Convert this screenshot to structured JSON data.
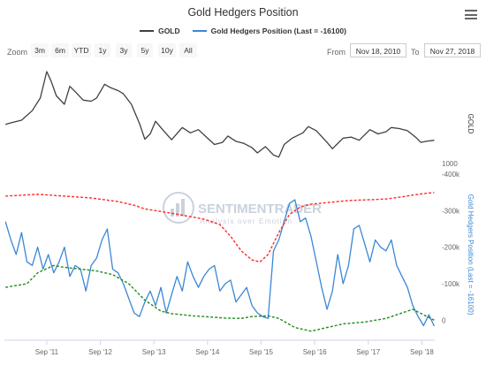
{
  "header": {
    "title": "Gold Hedgers Position",
    "menu_icon": "hamburger-menu-icon"
  },
  "legend": [
    {
      "label": "GOLD",
      "color": "#404040"
    },
    {
      "label": "Gold Hedgers Position (Last = -16100)",
      "color": "#3a87d6"
    }
  ],
  "toolbar": {
    "zoom_label": "Zoom",
    "zoom_buttons": [
      "3m",
      "6m",
      "YTD",
      "1y",
      "3y",
      "5y",
      "10y",
      "All"
    ],
    "from_label": "From",
    "from_value": "Nov 18, 2010",
    "to_label": "To",
    "to_value": "Nov 27, 2018"
  },
  "watermark": {
    "title": "SENTIMENTRADER",
    "subtitle": "Analysis over Emotion",
    "icon": "bar-chart-logo-icon"
  },
  "chart_data": [
    {
      "type": "line",
      "title": "",
      "ylabel": "GOLD",
      "x_range": [
        2010.88,
        2018.91
      ],
      "y_range": [
        1000,
        1920
      ],
      "y_ticks": [
        {
          "value": 1000,
          "label": "1000"
        }
      ],
      "grid": false,
      "series": [
        {
          "name": "GOLD",
          "color": "#404040",
          "x": [
            2010.9,
            2011.0,
            2011.2,
            2011.4,
            2011.55,
            2011.67,
            2011.75,
            2011.85,
            2012.0,
            2012.1,
            2012.2,
            2012.35,
            2012.5,
            2012.6,
            2012.75,
            2012.85,
            2013.0,
            2013.1,
            2013.25,
            2013.4,
            2013.5,
            2013.6,
            2013.7,
            2013.85,
            2014.0,
            2014.2,
            2014.35,
            2014.5,
            2014.65,
            2014.8,
            2014.95,
            2015.05,
            2015.2,
            2015.35,
            2015.5,
            2015.6,
            2015.75,
            2015.9,
            2016.0,
            2016.1,
            2016.25,
            2016.45,
            2016.55,
            2016.7,
            2016.9,
            2017.0,
            2017.2,
            2017.35,
            2017.5,
            2017.7,
            2017.85,
            2018.0,
            2018.1,
            2018.25,
            2018.4,
            2018.55,
            2018.65,
            2018.75,
            2018.9
          ],
          "y": [
            1370,
            1385,
            1410,
            1500,
            1620,
            1870,
            1780,
            1640,
            1560,
            1730,
            1680,
            1600,
            1590,
            1620,
            1750,
            1720,
            1690,
            1660,
            1560,
            1380,
            1230,
            1280,
            1400,
            1310,
            1225,
            1340,
            1290,
            1320,
            1250,
            1180,
            1200,
            1260,
            1210,
            1190,
            1150,
            1100,
            1160,
            1080,
            1060,
            1180,
            1240,
            1290,
            1350,
            1310,
            1200,
            1140,
            1240,
            1250,
            1220,
            1320,
            1280,
            1300,
            1340,
            1330,
            1310,
            1250,
            1200,
            1210,
            1220
          ]
        }
      ]
    },
    {
      "type": "line",
      "title": "",
      "ylabel": "Gold Hedgers Position (Last = -16100)",
      "x_range": [
        2010.88,
        2018.91
      ],
      "y_range": [
        -50000,
        410000
      ],
      "y_ticks": [
        {
          "value": 400000,
          "label": "-400k"
        },
        {
          "value": 300000,
          "label": "-300k"
        },
        {
          "value": 200000,
          "label": "-200k"
        },
        {
          "value": 100000,
          "label": "-100k"
        },
        {
          "value": 0,
          "label": "0"
        }
      ],
      "x_ticks": [
        {
          "value": 2011.67,
          "label": "Sep '11"
        },
        {
          "value": 2012.67,
          "label": "Sep '12"
        },
        {
          "value": 2013.67,
          "label": "Sep '13"
        },
        {
          "value": 2014.67,
          "label": "Sep '14"
        },
        {
          "value": 2015.67,
          "label": "Sep '15"
        },
        {
          "value": 2016.67,
          "label": "Sep '16"
        },
        {
          "value": 2017.67,
          "label": "Sep '17"
        },
        {
          "value": 2018.67,
          "label": "Sep '18"
        }
      ],
      "grid": false,
      "series": [
        {
          "name": "Gold Hedgers Position (Last = -16100)",
          "color": "#3a87d6",
          "x": [
            2010.9,
            2011.0,
            2011.1,
            2011.2,
            2011.3,
            2011.4,
            2011.5,
            2011.6,
            2011.7,
            2011.8,
            2011.9,
            2012.0,
            2012.1,
            2012.2,
            2012.3,
            2012.4,
            2012.5,
            2012.6,
            2012.7,
            2012.8,
            2012.9,
            2013.0,
            2013.1,
            2013.2,
            2013.3,
            2013.4,
            2013.5,
            2013.6,
            2013.7,
            2013.8,
            2013.9,
            2014.0,
            2014.1,
            2014.2,
            2014.3,
            2014.4,
            2014.5,
            2014.6,
            2014.7,
            2014.8,
            2014.9,
            2015.0,
            2015.1,
            2015.2,
            2015.3,
            2015.4,
            2015.5,
            2015.6,
            2015.7,
            2015.8,
            2015.9,
            2016.0,
            2016.1,
            2016.2,
            2016.3,
            2016.4,
            2016.5,
            2016.6,
            2016.7,
            2016.8,
            2016.9,
            2017.0,
            2017.1,
            2017.2,
            2017.3,
            2017.4,
            2017.5,
            2017.6,
            2017.7,
            2017.8,
            2017.9,
            2018.0,
            2018.1,
            2018.2,
            2018.3,
            2018.4,
            2018.5,
            2018.6,
            2018.7,
            2018.8,
            2018.9
          ],
          "y": [
            270000,
            220000,
            180000,
            240000,
            160000,
            150000,
            200000,
            140000,
            180000,
            130000,
            160000,
            200000,
            120000,
            150000,
            140000,
            80000,
            150000,
            170000,
            220000,
            250000,
            140000,
            130000,
            100000,
            60000,
            20000,
            10000,
            50000,
            80000,
            40000,
            90000,
            20000,
            70000,
            120000,
            80000,
            160000,
            120000,
            90000,
            120000,
            140000,
            150000,
            80000,
            100000,
            110000,
            50000,
            70000,
            90000,
            40000,
            20000,
            10000,
            5000,
            190000,
            220000,
            270000,
            320000,
            330000,
            270000,
            280000,
            230000,
            160000,
            90000,
            30000,
            80000,
            180000,
            100000,
            150000,
            250000,
            260000,
            210000,
            160000,
            220000,
            200000,
            190000,
            220000,
            150000,
            120000,
            90000,
            40000,
            10000,
            -15000,
            15000,
            -16100
          ]
        },
        {
          "name": "",
          "color": "#ff2a2a",
          "style": "dashed",
          "x": [
            2010.9,
            2011.5,
            2012.0,
            2012.5,
            2013.0,
            2013.3,
            2013.5,
            2013.8,
            2014.0,
            2014.3,
            2014.6,
            2014.9,
            2015.1,
            2015.3,
            2015.5,
            2015.65,
            2015.8,
            2016.0,
            2016.2,
            2016.4,
            2016.6,
            2016.9,
            2017.3,
            2017.7,
            2018.0,
            2018.3,
            2018.6,
            2018.9
          ],
          "y": [
            340000,
            345000,
            340000,
            335000,
            325000,
            315000,
            305000,
            298000,
            293000,
            285000,
            277000,
            262000,
            230000,
            190000,
            165000,
            160000,
            180000,
            240000,
            290000,
            310000,
            318000,
            322000,
            328000,
            330000,
            332000,
            338000,
            345000,
            350000
          ]
        },
        {
          "name": "",
          "color": "#1e8c1e",
          "style": "dashed",
          "x": [
            2010.9,
            2011.3,
            2011.5,
            2011.8,
            2012.0,
            2012.3,
            2012.6,
            2012.9,
            2013.2,
            2013.5,
            2013.8,
            2014.0,
            2014.4,
            2014.8,
            2015.0,
            2015.3,
            2015.5,
            2015.8,
            2016.0,
            2016.3,
            2016.6,
            2016.9,
            2017.2,
            2017.6,
            2018.0,
            2018.3,
            2018.5,
            2018.7,
            2018.9
          ],
          "y": [
            90000,
            100000,
            130000,
            150000,
            145000,
            140000,
            135000,
            125000,
            100000,
            55000,
            25000,
            18000,
            12000,
            8000,
            6000,
            5000,
            10000,
            12000,
            5000,
            -20000,
            -30000,
            -20000,
            -10000,
            -5000,
            5000,
            20000,
            30000,
            15000,
            0
          ]
        }
      ]
    }
  ]
}
